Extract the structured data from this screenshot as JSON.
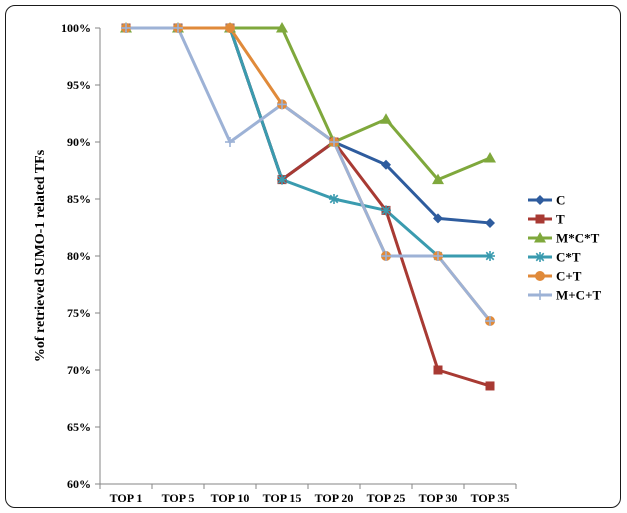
{
  "chart_data": {
    "type": "line",
    "title": "",
    "xlabel": "",
    "ylabel": "%of retrieved SUMO-1 related TFs",
    "categories": [
      "TOP 1",
      "TOP 5",
      "TOP 10",
      "TOP 15",
      "TOP 20",
      "TOP 25",
      "TOP 30",
      "TOP 35"
    ],
    "y_ticks": [
      "60%",
      "65%",
      "70%",
      "75%",
      "80%",
      "85%",
      "90%",
      "95%",
      "100%"
    ],
    "ylim": [
      60,
      100
    ],
    "grid": false,
    "legend_position": "right",
    "series": [
      {
        "name": "C",
        "color": "#2E5C9E",
        "marker": "diamond",
        "values": [
          100,
          100,
          100,
          86.7,
          90,
          88,
          83.3,
          82.9
        ]
      },
      {
        "name": "T",
        "color": "#A83A33",
        "marker": "square",
        "values": [
          100,
          100,
          100,
          86.7,
          90,
          84,
          70,
          68.6
        ]
      },
      {
        "name": "M*C*T",
        "color": "#7FA83C",
        "marker": "triangle",
        "values": [
          100,
          100,
          100,
          100,
          90,
          92,
          86.7,
          88.6
        ]
      },
      {
        "name": "C*T",
        "color": "#3A9BAF",
        "marker": "asterisk",
        "values": [
          100,
          100,
          100,
          86.7,
          85,
          84,
          80,
          80
        ]
      },
      {
        "name": "C+T",
        "color": "#E08A3A",
        "marker": "circle",
        "values": [
          100,
          100,
          100,
          93.3,
          90,
          80,
          80,
          74.3
        ]
      },
      {
        "name": "M+C+T",
        "color": "#9DB2D6",
        "marker": "plus",
        "values": [
          100,
          100,
          90,
          93.3,
          90,
          80,
          80,
          74.3
        ]
      }
    ]
  }
}
